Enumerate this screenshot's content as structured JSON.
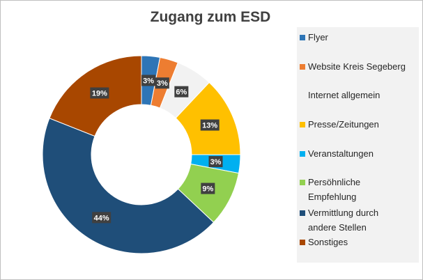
{
  "chart_data": {
    "type": "pie",
    "title": "Zugang zum ESD",
    "categories": [
      "Flyer",
      "Website Kreis Segeberg",
      "Internet allgemein",
      "Presse/Zeitungen",
      "Veranstaltungen",
      "Persöhnliche Empfehlung",
      "Vermittlung durch andere Stellen",
      "Sonstiges"
    ],
    "values": [
      3,
      3,
      6,
      13,
      3,
      9,
      44,
      19
    ],
    "value_labels": [
      "3%",
      "3%",
      "6%",
      "13%",
      "3%",
      "9%",
      "44%",
      "19%"
    ],
    "colors": [
      "#2e75b6",
      "#ed7d31",
      "#f2f2f2",
      "#ffc000",
      "#00b0f0",
      "#92d050",
      "#1f4e79",
      "#a84700"
    ],
    "donut": true,
    "legend_position": "right"
  }
}
